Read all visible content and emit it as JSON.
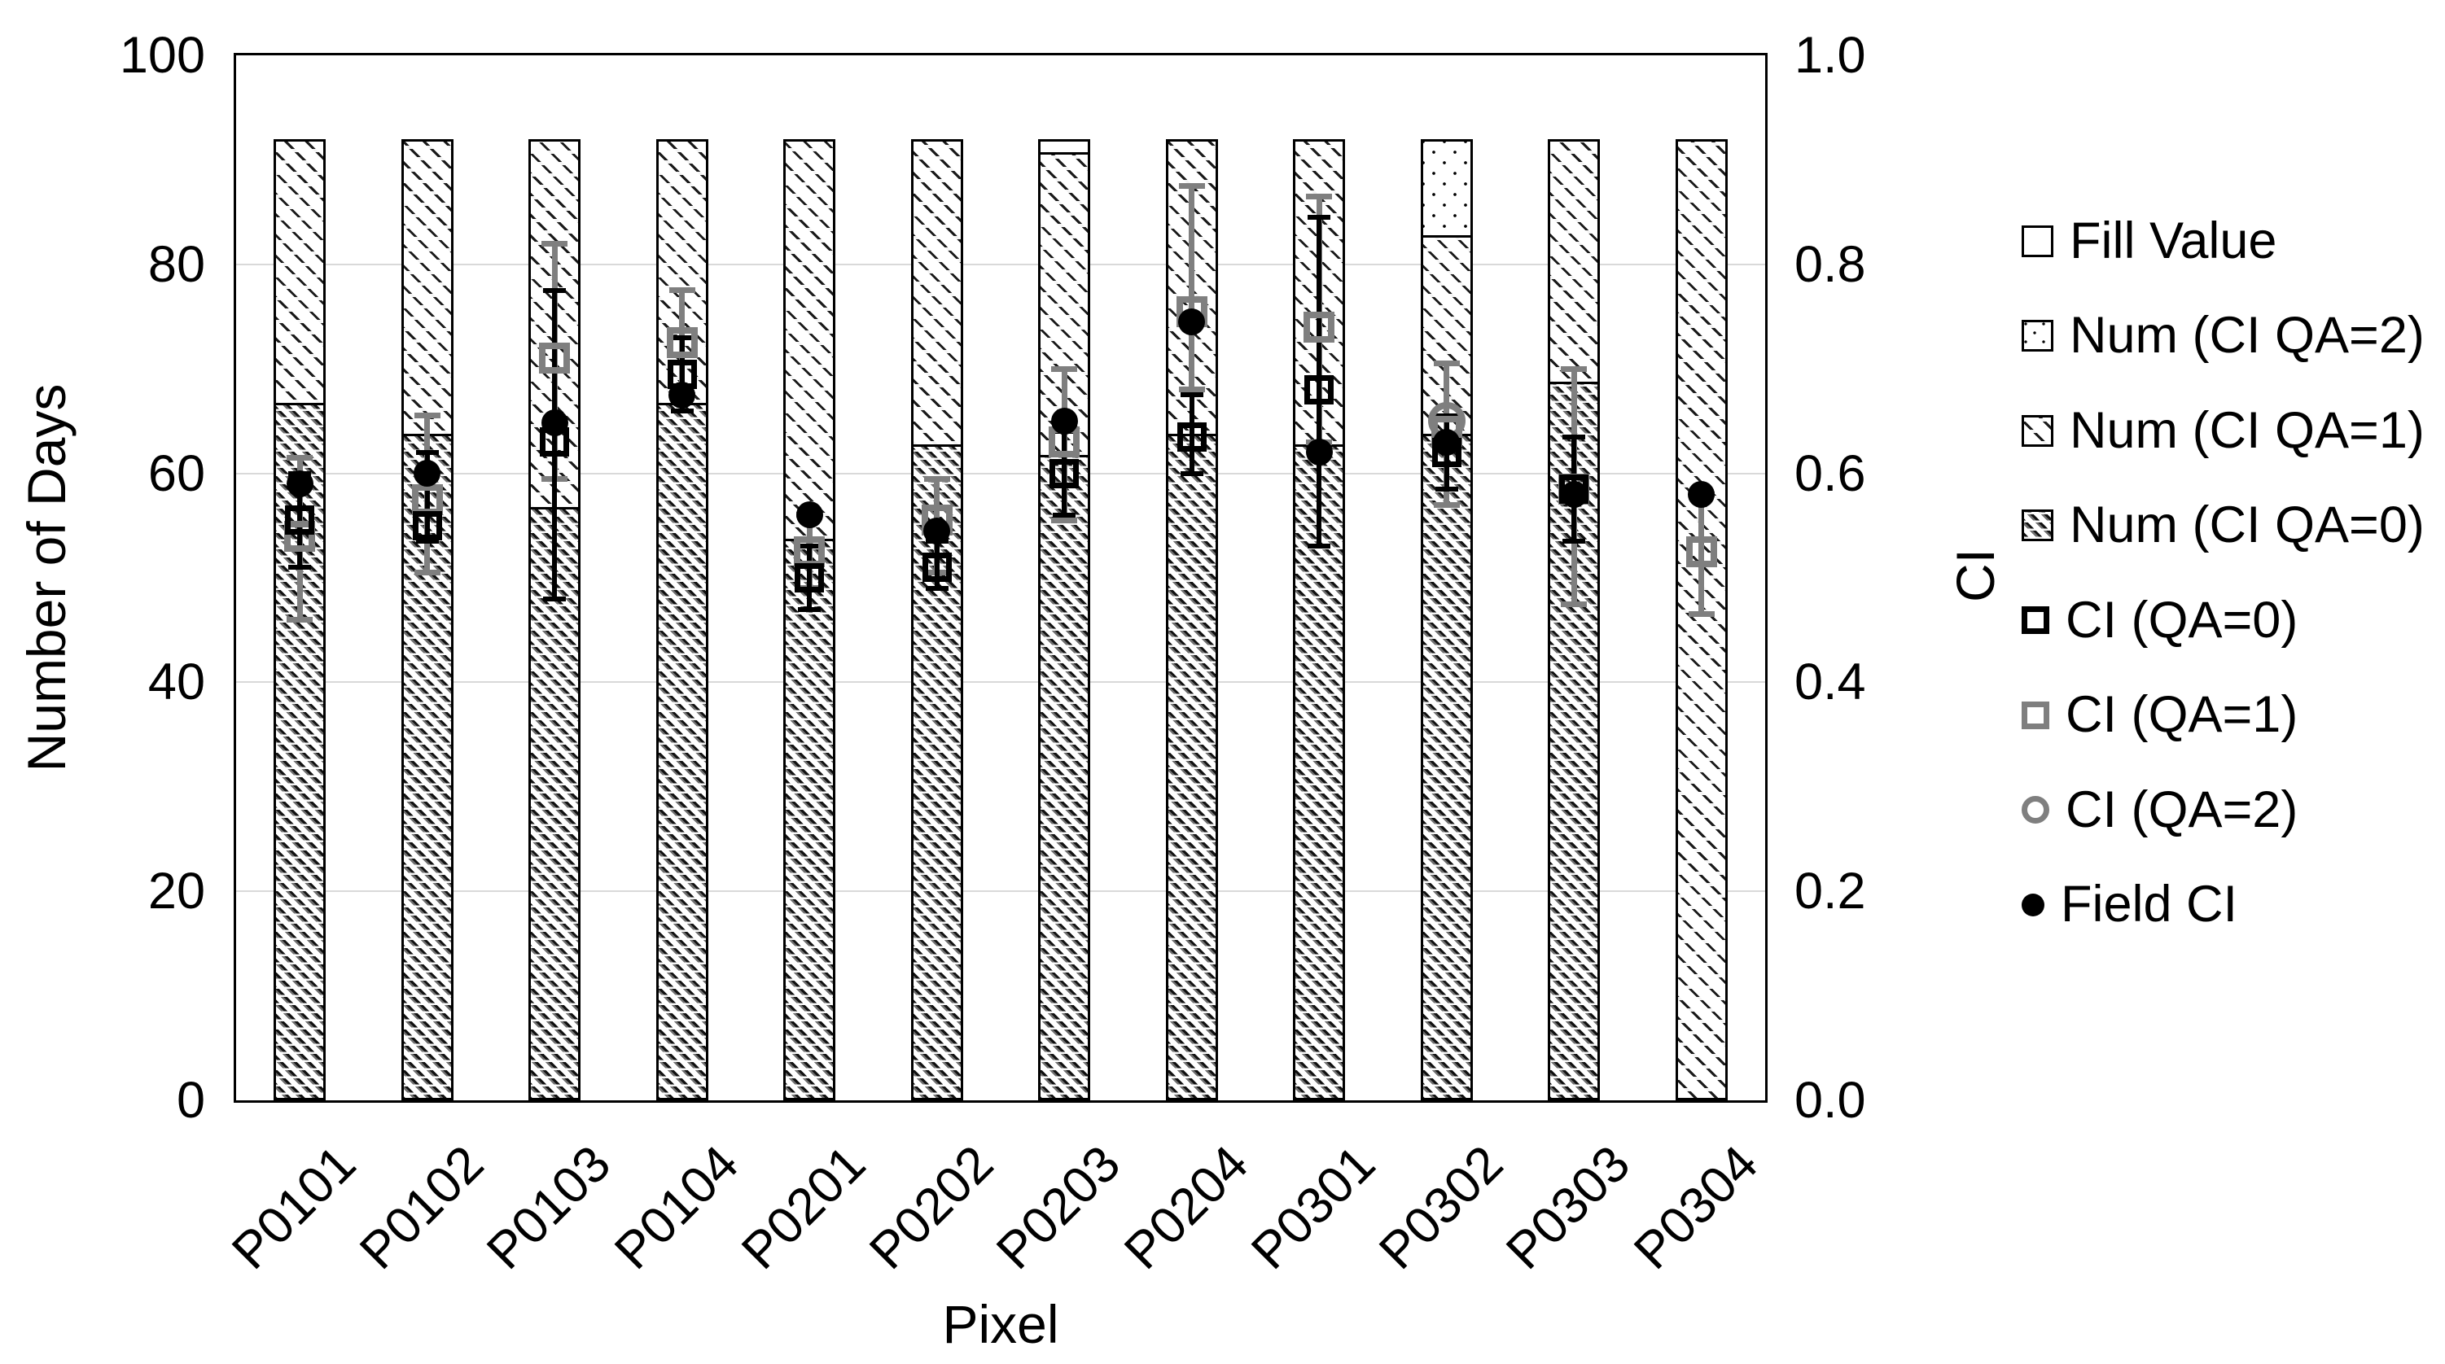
{
  "page": {
    "background": "#ffffff"
  },
  "chart_data": {
    "type": "bar",
    "subtype": "stacked-hatched-bars-with-ci-scatter-overlay",
    "title": "",
    "x_axis": {
      "label": "Pixel",
      "categories": [
        "P0101",
        "P0102",
        "P0103",
        "P0104",
        "P0201",
        "P0202",
        "P0203",
        "P0204",
        "P0301",
        "P0302",
        "P0303",
        "P0304"
      ]
    },
    "left_axis": {
      "label": "Number of Days",
      "range": [
        0,
        100
      ],
      "ticks": [
        0,
        20,
        40,
        60,
        80,
        100
      ]
    },
    "right_axis": {
      "label": "CI",
      "range": [
        0.0,
        1.0
      ],
      "ticks": [
        "0.0",
        "0.2",
        "0.4",
        "0.6",
        "0.8",
        "1.0"
      ]
    },
    "grid": "horizontal",
    "bar_total": 92,
    "colors": {
      "black": "#000000",
      "gray": "#7f7f7f",
      "gridline": "#d9d9d9",
      "background": "#ffffff"
    },
    "legend": [
      {
        "label": "Fill Value",
        "marker": "fill-value-swatch"
      },
      {
        "label": "Num (CI QA=2)",
        "marker": "num-qa2-dotted-swatch"
      },
      {
        "label": "Num (CI QA=1)",
        "marker": "num-qa1-light-hatch-swatch"
      },
      {
        "label": "Num (CI QA=0)",
        "marker": "num-qa0-dense-hatch-swatch"
      },
      {
        "label": "CI (QA=0)",
        "marker": "black-open-square"
      },
      {
        "label": "CI (QA=1)",
        "marker": "gray-open-square"
      },
      {
        "label": "CI (QA=2)",
        "marker": "gray-open-circle"
      },
      {
        "label": "Field CI",
        "marker": "black-filled-circle"
      }
    ],
    "pixels": [
      {
        "pixel": "P0101",
        "segments": {
          "num_qa0": 67,
          "num_qa1": 25,
          "num_qa2": 0,
          "fill_value": 0
        },
        "ci_qa0": {
          "value": 0.555,
          "lo": 0.51,
          "hi": 0.6
        },
        "ci_qa1": {
          "value": 0.54,
          "lo": 0.46,
          "hi": 0.615
        },
        "ci_qa2": null,
        "field_ci": 0.59
      },
      {
        "pixel": "P0102",
        "segments": {
          "num_qa0": 64,
          "num_qa1": 28,
          "num_qa2": 0,
          "fill_value": 0
        },
        "ci_qa0": {
          "value": 0.55,
          "lo": 0.535,
          "hi": 0.62
        },
        "ci_qa1": {
          "value": 0.575,
          "lo": 0.505,
          "hi": 0.655
        },
        "ci_qa2": null,
        "field_ci": 0.6
      },
      {
        "pixel": "P0103",
        "segments": {
          "num_qa0": 57,
          "num_qa1": 35,
          "num_qa2": 0,
          "fill_value": 0
        },
        "ci_qa0": {
          "value": 0.63,
          "lo": 0.48,
          "hi": 0.775
        },
        "ci_qa1": {
          "value": 0.71,
          "lo": 0.595,
          "hi": 0.82
        },
        "ci_qa2": null,
        "field_ci": 0.648
      },
      {
        "pixel": "P0104",
        "segments": {
          "num_qa0": 67,
          "num_qa1": 25,
          "num_qa2": 0,
          "fill_value": 0
        },
        "ci_qa0": {
          "value": 0.695,
          "lo": 0.66,
          "hi": 0.73
        },
        "ci_qa1": {
          "value": 0.725,
          "lo": 0.675,
          "hi": 0.775
        },
        "ci_qa2": null,
        "field_ci": 0.675
      },
      {
        "pixel": "P0201",
        "segments": {
          "num_qa0": 54,
          "num_qa1": 38,
          "num_qa2": 0,
          "fill_value": 0
        },
        "ci_qa0": {
          "value": 0.5,
          "lo": 0.47,
          "hi": 0.53
        },
        "ci_qa1": {
          "value": 0.525,
          "lo": 0.49,
          "hi": 0.56
        },
        "ci_qa2": null,
        "field_ci": 0.56
      },
      {
        "pixel": "P0202",
        "segments": {
          "num_qa0": 63,
          "num_qa1": 29,
          "num_qa2": 0,
          "fill_value": 0
        },
        "ci_qa0": {
          "value": 0.51,
          "lo": 0.49,
          "hi": 0.535
        },
        "ci_qa1": {
          "value": 0.555,
          "lo": 0.505,
          "hi": 0.595
        },
        "ci_qa2": null,
        "field_ci": 0.545
      },
      {
        "pixel": "P0203",
        "segments": {
          "num_qa0": 62,
          "num_qa1": 29,
          "num_qa2": 0,
          "fill_value": 1
        },
        "ci_qa0": {
          "value": 0.6,
          "lo": 0.56,
          "hi": 0.64
        },
        "ci_qa1": {
          "value": 0.63,
          "lo": 0.555,
          "hi": 0.7
        },
        "ci_qa2": null,
        "field_ci": 0.65
      },
      {
        "pixel": "P0204",
        "segments": {
          "num_qa0": 64,
          "num_qa1": 28,
          "num_qa2": 0,
          "fill_value": 0
        },
        "ci_qa0": {
          "value": 0.635,
          "lo": 0.6,
          "hi": 0.675
        },
        "ci_qa1": {
          "value": 0.755,
          "lo": 0.68,
          "hi": 0.875
        },
        "ci_qa2": null,
        "field_ci": 0.745
      },
      {
        "pixel": "P0301",
        "segments": {
          "num_qa0": 63,
          "num_qa1": 29,
          "num_qa2": 0,
          "fill_value": 0
        },
        "ci_qa0": {
          "value": 0.68,
          "lo": 0.53,
          "hi": 0.845
        },
        "ci_qa1": {
          "value": 0.74,
          "lo": 0.63,
          "hi": 0.865
        },
        "ci_qa2": null,
        "field_ci": 0.62
      },
      {
        "pixel": "P0302",
        "segments": {
          "num_qa0": 64,
          "num_qa1": 19,
          "num_qa2": 9,
          "fill_value": 0
        },
        "ci_qa0": {
          "value": 0.62,
          "lo": 0.585,
          "hi": 0.655
        },
        "ci_qa1": {
          "value": 0.64,
          "lo": 0.57,
          "hi": 0.705
        },
        "ci_qa2": {
          "value": 0.65,
          "lo": null,
          "hi": null
        },
        "field_ci": 0.63
      },
      {
        "pixel": "P0303",
        "segments": {
          "num_qa0": 69,
          "num_qa1": 23,
          "num_qa2": 0,
          "fill_value": 0
        },
        "ci_qa0": {
          "value": 0.585,
          "lo": 0.535,
          "hi": 0.635
        },
        "ci_qa1": {
          "value": 0.585,
          "lo": 0.475,
          "hi": 0.7
        },
        "ci_qa2": null,
        "field_ci": 0.58
      },
      {
        "pixel": "P0304",
        "segments": {
          "num_qa0": 0,
          "num_qa1": 92,
          "num_qa2": 0,
          "fill_value": 0
        },
        "ci_qa0": null,
        "ci_qa1": {
          "value": 0.525,
          "lo": 0.465,
          "hi": 0.58
        },
        "ci_qa2": null,
        "field_ci": 0.58
      }
    ]
  }
}
